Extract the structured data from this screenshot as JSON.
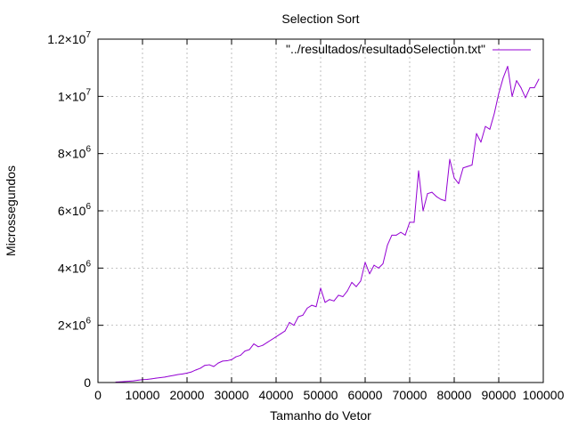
{
  "chart_data": {
    "type": "line",
    "title": "Selection Sort",
    "xlabel": "Tamanho do Vetor",
    "ylabel": "Microssegundos",
    "xlim": [
      0,
      100000
    ],
    "ylim": [
      0,
      12000000
    ],
    "grid": true,
    "legend_position": "top-right",
    "x_ticks": [
      "0",
      "10000",
      "20000",
      "30000",
      "40000",
      "50000",
      "60000",
      "70000",
      "80000",
      "90000",
      "100000"
    ],
    "y_ticks": [
      {
        "value": 0,
        "mantissa": "0",
        "exp": ""
      },
      {
        "value": 2000000,
        "mantissa": "2×10",
        "exp": "6"
      },
      {
        "value": 4000000,
        "mantissa": "4×10",
        "exp": "6"
      },
      {
        "value": 6000000,
        "mantissa": "6×10",
        "exp": "6"
      },
      {
        "value": 8000000,
        "mantissa": "8×10",
        "exp": "6"
      },
      {
        "value": 10000000,
        "mantissa": "1×10",
        "exp": "7"
      },
      {
        "value": 12000000,
        "mantissa": "1.2×10",
        "exp": "7"
      }
    ],
    "series": [
      {
        "name": "\"../resultados/resultadoSelection.txt\"",
        "color": "#9400d3",
        "x": [
          4000,
          5000,
          6000,
          7000,
          8000,
          9000,
          10000,
          11000,
          12000,
          13000,
          14000,
          15000,
          16000,
          17000,
          18000,
          19000,
          20000,
          21000,
          22000,
          23000,
          24000,
          25000,
          26000,
          27000,
          28000,
          29000,
          30000,
          31000,
          32000,
          33000,
          34000,
          35000,
          36000,
          37000,
          38000,
          39000,
          40000,
          41000,
          42000,
          43000,
          44000,
          45000,
          46000,
          47000,
          48000,
          49000,
          50000,
          51000,
          52000,
          53000,
          54000,
          55000,
          56000,
          57000,
          58000,
          59000,
          60000,
          61000,
          62000,
          63000,
          64000,
          65000,
          66000,
          67000,
          68000,
          69000,
          70000,
          71000,
          72000,
          73000,
          74000,
          75000,
          76000,
          77000,
          78000,
          79000,
          80000,
          81000,
          82000,
          83000,
          84000,
          85000,
          86000,
          87000,
          88000,
          89000,
          90000,
          91000,
          92000,
          93000,
          94000,
          95000,
          96000,
          97000,
          98000,
          99000
        ],
        "y": [
          15000,
          25000,
          35000,
          45000,
          60000,
          80000,
          100000,
          110000,
          130000,
          150000,
          170000,
          190000,
          220000,
          250000,
          280000,
          300000,
          330000,
          370000,
          440000,
          500000,
          600000,
          620000,
          560000,
          680000,
          750000,
          760000,
          800000,
          900000,
          950000,
          1100000,
          1150000,
          1350000,
          1250000,
          1300000,
          1400000,
          1500000,
          1600000,
          1700000,
          1800000,
          2100000,
          2000000,
          2300000,
          2350000,
          2600000,
          2700000,
          2650000,
          3300000,
          2800000,
          2900000,
          2850000,
          3050000,
          3000000,
          3200000,
          3500000,
          3350000,
          3550000,
          4200000,
          3800000,
          4100000,
          4000000,
          4150000,
          4800000,
          5150000,
          5150000,
          5250000,
          5150000,
          5600000,
          5600000,
          7400000,
          6000000,
          6600000,
          6650000,
          6500000,
          6400000,
          6350000,
          7800000,
          7150000,
          6950000,
          7500000,
          7550000,
          7600000,
          8700000,
          8400000,
          8950000,
          8850000,
          9400000,
          10100000,
          10650000,
          11050000,
          10000000,
          10550000,
          10300000,
          9950000,
          10300000,
          10300000,
          10600000
        ]
      }
    ]
  }
}
